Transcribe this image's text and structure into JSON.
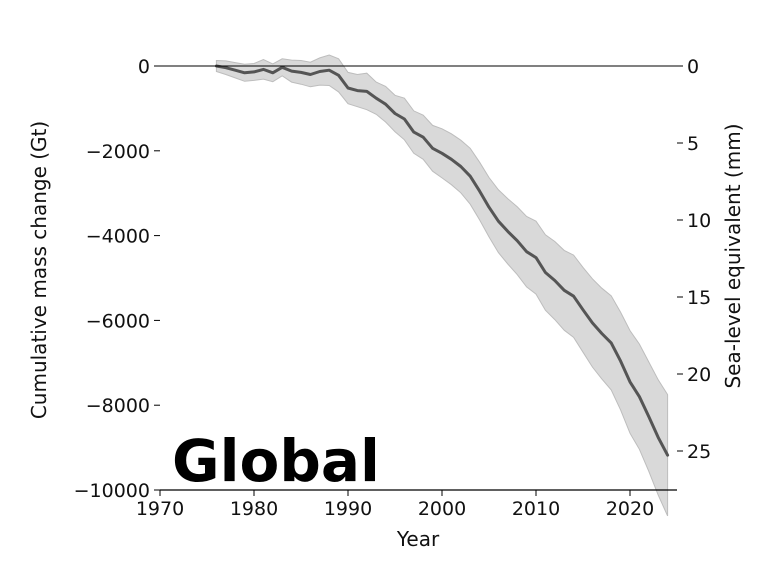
{
  "chart_data": {
    "type": "line",
    "annotation": "Global",
    "xlabel": "Year",
    "ylabel": "Cumulative mass change (Gt)",
    "y2label": "Sea-level equivalent (mm)",
    "xlim": [
      1970,
      2025
    ],
    "ylim": [
      -10000,
      0
    ],
    "y2lim": [
      0,
      27.6
    ],
    "y2_inverted": true,
    "x_ticks": [
      "1970",
      "1980",
      "1990",
      "2000",
      "2010",
      "2020"
    ],
    "y_ticks": [
      "0",
      "−2000",
      "−4000",
      "−6000",
      "−8000",
      "−10000"
    ],
    "y2_ticks": [
      "0",
      "5",
      "10",
      "15",
      "20",
      "25"
    ],
    "grid": false,
    "colors": {
      "line": "#555555",
      "band": "#d9d9d9",
      "band_edge": "#bdbdbd",
      "axis": "#000000"
    },
    "series": [
      {
        "x": [
          1976,
          1977,
          1978,
          1979,
          1980,
          1981,
          1982,
          1983,
          1984,
          1985,
          1986,
          1987,
          1988,
          1989,
          1990,
          1991,
          1992,
          1993,
          1994,
          1995,
          1996,
          1997,
          1998,
          1999,
          2000,
          2001,
          2002,
          2003,
          2004,
          2005,
          2006,
          2007,
          2008,
          2009,
          2010,
          2011,
          2012,
          2013,
          2014,
          2015,
          2016,
          2017,
          2018,
          2019,
          2020,
          2021,
          2022,
          2023,
          2024
        ],
        "values": [
          0,
          -40,
          -100,
          -160,
          -140,
          -80,
          -160,
          -30,
          -120,
          -150,
          -200,
          -130,
          -100,
          -220,
          -520,
          -580,
          -600,
          -760,
          -900,
          -1120,
          -1250,
          -1560,
          -1680,
          -1940,
          -2060,
          -2200,
          -2370,
          -2600,
          -2950,
          -3330,
          -3660,
          -3900,
          -4120,
          -4380,
          -4520,
          -4870,
          -5060,
          -5290,
          -5430,
          -5750,
          -6060,
          -6310,
          -6530,
          -6960,
          -7450,
          -7800,
          -8270,
          -8760,
          -9180
        ],
        "upper": [
          130,
          120,
          80,
          40,
          60,
          150,
          50,
          170,
          140,
          130,
          90,
          190,
          260,
          170,
          -150,
          -200,
          -170,
          -380,
          -480,
          -690,
          -760,
          -1060,
          -1160,
          -1400,
          -1480,
          -1600,
          -1750,
          -1940,
          -2270,
          -2630,
          -2920,
          -3130,
          -3320,
          -3550,
          -3660,
          -3980,
          -4140,
          -4350,
          -4460,
          -4750,
          -5020,
          -5240,
          -5420,
          -5810,
          -6240,
          -6560,
          -6980,
          -7400,
          -7750
        ],
        "lower": [
          -130,
          -200,
          -280,
          -360,
          -340,
          -310,
          -370,
          -230,
          -380,
          -430,
          -490,
          -450,
          -460,
          -610,
          -890,
          -960,
          -1030,
          -1140,
          -1320,
          -1550,
          -1740,
          -2060,
          -2200,
          -2480,
          -2640,
          -2800,
          -2990,
          -3260,
          -3630,
          -4030,
          -4400,
          -4670,
          -4920,
          -5210,
          -5380,
          -5760,
          -5980,
          -6230,
          -6400,
          -6750,
          -7100,
          -7380,
          -7640,
          -8110,
          -8660,
          -9040,
          -9560,
          -10120,
          -10610
        ]
      }
    ]
  }
}
